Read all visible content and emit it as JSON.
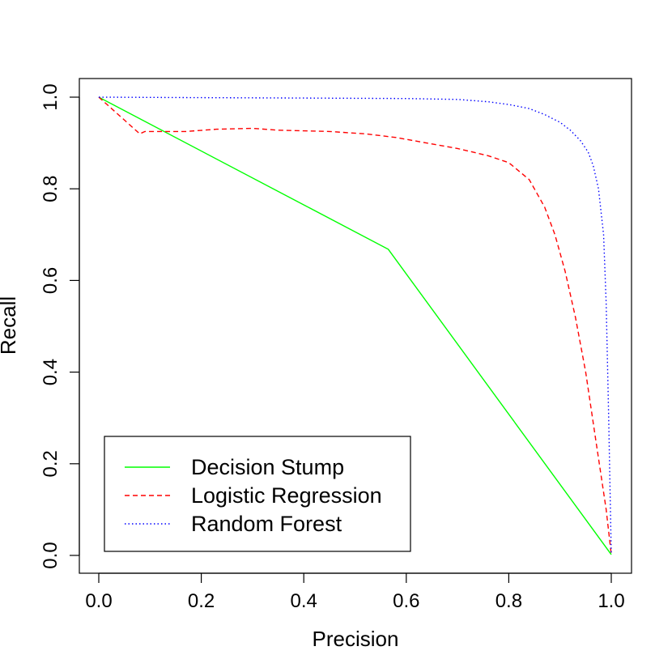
{
  "chart_data": {
    "type": "line",
    "title": "",
    "xlabel": "Precision",
    "ylabel": "Recall",
    "xlim": [
      -0.04,
      1.04
    ],
    "ylim": [
      -0.04,
      1.04
    ],
    "x_ticks": [
      "0.0",
      "0.2",
      "0.4",
      "0.6",
      "0.8",
      "1.0"
    ],
    "y_ticks": [
      "0.0",
      "0.2",
      "0.4",
      "0.6",
      "0.8",
      "1.0"
    ],
    "grid": false,
    "legend_position": "bottom-left",
    "series": [
      {
        "name": "Decision Stump",
        "color": "#00ff00",
        "line_style": "solid",
        "x": [
          0.0,
          0.565,
          1.0
        ],
        "y": [
          1.0,
          0.668,
          0.002
        ]
      },
      {
        "name": "Logistic Regression",
        "color": "#ff0000",
        "line_style": "dashed",
        "x": [
          0.0,
          0.04,
          0.08,
          0.09,
          0.13,
          0.17,
          0.23,
          0.3,
          0.35,
          0.45,
          0.52,
          0.58,
          0.63,
          0.7,
          0.76,
          0.8,
          0.84,
          0.87,
          0.89,
          0.91,
          0.93,
          0.95,
          0.97,
          0.99,
          1.0
        ],
        "y": [
          1.0,
          0.96,
          0.92,
          0.925,
          0.925,
          0.925,
          0.93,
          0.932,
          0.928,
          0.925,
          0.92,
          0.912,
          0.902,
          0.888,
          0.872,
          0.857,
          0.82,
          0.76,
          0.7,
          0.62,
          0.52,
          0.4,
          0.25,
          0.1,
          0.002
        ]
      },
      {
        "name": "Random Forest",
        "color": "#0000ff",
        "line_style": "dotted",
        "x": [
          0.0,
          0.2,
          0.4,
          0.6,
          0.7,
          0.76,
          0.8,
          0.84,
          0.87,
          0.9,
          0.92,
          0.94,
          0.955,
          0.965,
          0.975,
          0.985,
          0.99,
          0.995,
          1.0
        ],
        "y": [
          1.0,
          0.999,
          0.998,
          0.997,
          0.995,
          0.99,
          0.984,
          0.975,
          0.962,
          0.945,
          0.928,
          0.905,
          0.88,
          0.85,
          0.8,
          0.7,
          0.55,
          0.3,
          0.002
        ]
      }
    ]
  }
}
